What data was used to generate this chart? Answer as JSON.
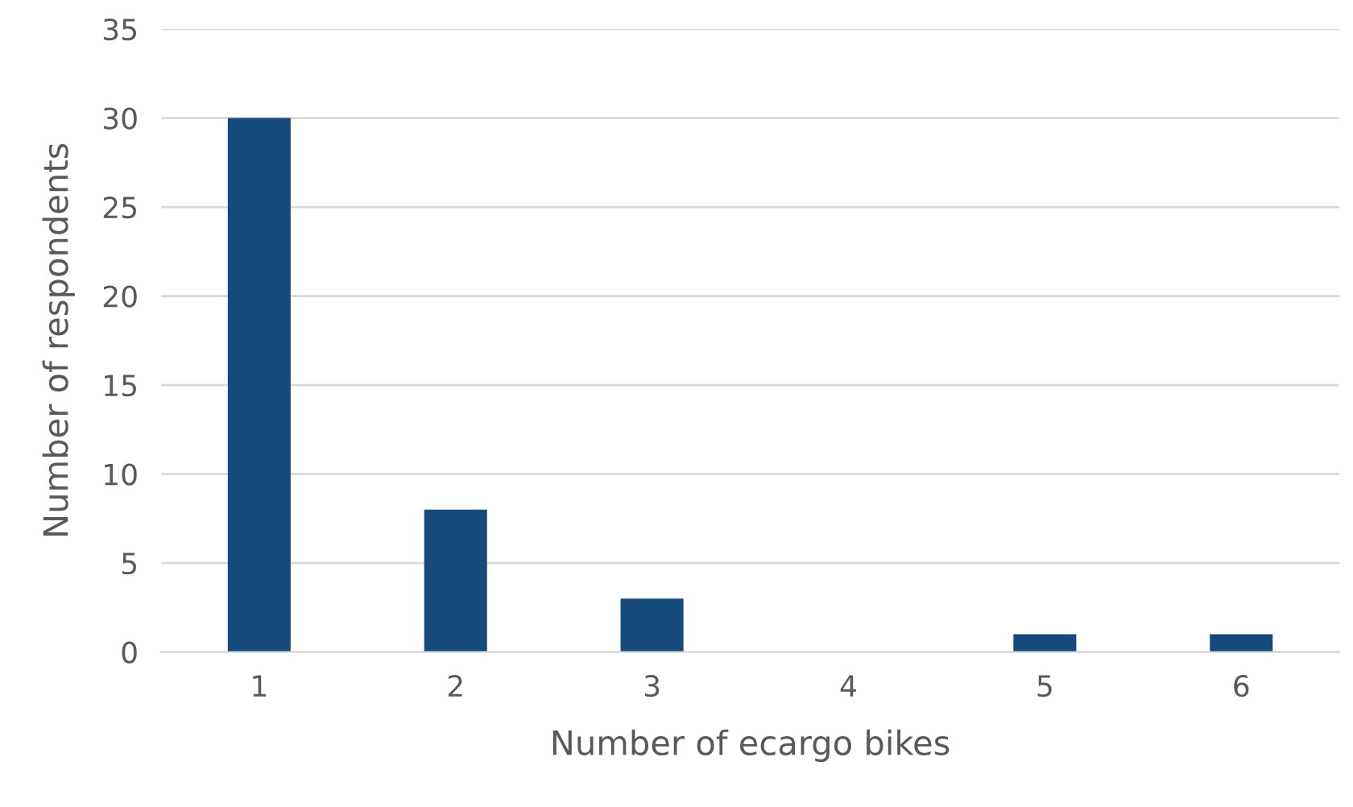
{
  "chart_data": {
    "type": "bar",
    "xlabel": "Number of ecargo bikes",
    "ylabel": "Number of respondents",
    "categories": [
      "1",
      "2",
      "3",
      "4",
      "5",
      "6"
    ],
    "values": [
      30,
      8,
      3,
      0,
      1,
      1
    ],
    "color": "#174a7c",
    "ylim": [
      0,
      35
    ],
    "yticks": [
      0,
      5,
      10,
      15,
      20,
      25,
      30,
      35
    ],
    "grid": "y",
    "legend": false
  }
}
